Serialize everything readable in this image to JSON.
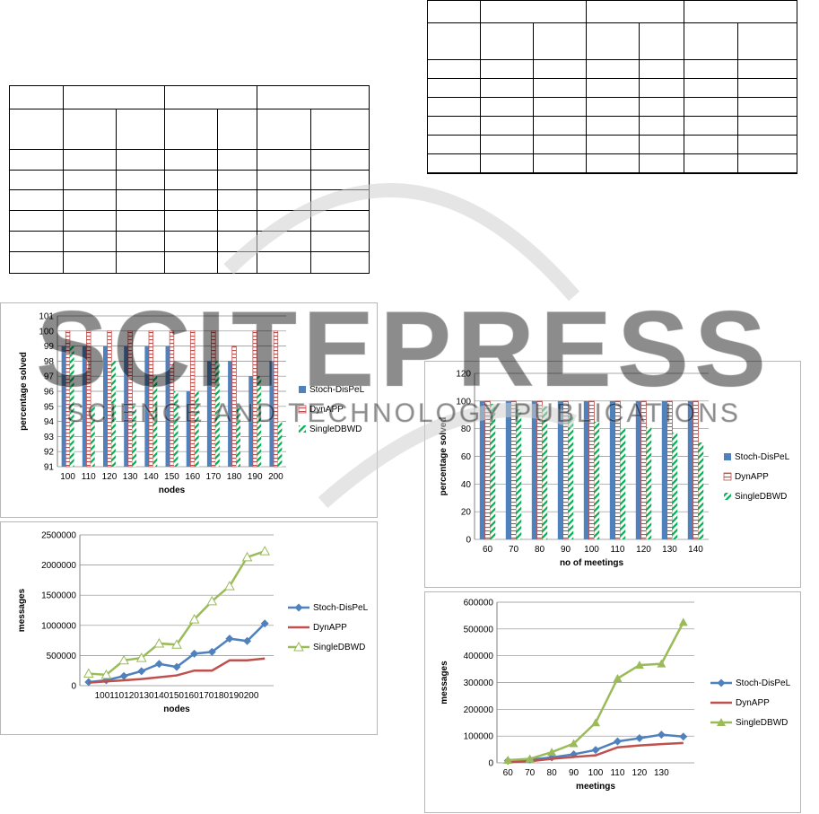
{
  "colors": {
    "stoch": "#4f81bd",
    "dynapp": "#c0504d",
    "single": "#9bbb59",
    "grid": "#8c8c8c",
    "watermark": "#cfcfcf"
  },
  "tables": [
    {
      "id": "left-table",
      "rows": 8,
      "cols": 7
    },
    {
      "id": "right-table",
      "rows": 8,
      "cols": 7
    }
  ],
  "chart_data": [
    {
      "id": "c1",
      "type": "bar",
      "xlabel": "nodes",
      "ylabel": "percentage solved",
      "categories": [
        "100",
        "110",
        "120",
        "130",
        "140",
        "150",
        "160",
        "170",
        "180",
        "190",
        "200"
      ],
      "ylim": [
        91,
        101
      ],
      "yticks": [
        91,
        92,
        93,
        94,
        95,
        96,
        97,
        98,
        99,
        100,
        101
      ],
      "grid": true,
      "legend": "right",
      "series": [
        {
          "name": "Stoch-DisPeL",
          "pattern": "solid",
          "values": [
            99,
            99,
            99,
            99,
            99,
            99,
            96,
            98,
            98,
            97,
            98
          ]
        },
        {
          "name": "DynAPP",
          "pattern": "brick",
          "values": [
            100,
            100,
            100,
            100,
            100,
            100,
            100,
            100,
            99,
            100,
            100
          ]
        },
        {
          "name": "SingleDBWD",
          "pattern": "diag",
          "values": [
            99,
            95,
            98,
            95,
            97,
            96,
            96,
            98,
            95,
            97,
            94
          ]
        }
      ]
    },
    {
      "id": "c2",
      "type": "line",
      "xlabel": "nodes",
      "ylabel": "messages",
      "x": [
        "100",
        "110",
        "120",
        "130",
        "140",
        "150",
        "160",
        "170",
        "180",
        "190",
        "200"
      ],
      "xticklabels": "100110120130140150160170180190200",
      "ylim": [
        0,
        2500000
      ],
      "yticks": [
        0,
        500000,
        1000000,
        1500000,
        2000000,
        2500000
      ],
      "grid": true,
      "legend": "right",
      "series": [
        {
          "name": "Stoch-DisPeL",
          "marker": "diamond",
          "values": [
            60000,
            90000,
            160000,
            240000,
            360000,
            310000,
            530000,
            560000,
            780000,
            740000,
            1030000
          ]
        },
        {
          "name": "DynAPP",
          "marker": "none",
          "values": [
            50000,
            70000,
            90000,
            110000,
            140000,
            170000,
            250000,
            250000,
            420000,
            420000,
            450000
          ]
        },
        {
          "name": "SingleDBWD",
          "marker": "triangle-open",
          "values": [
            200000,
            180000,
            420000,
            460000,
            700000,
            680000,
            1100000,
            1400000,
            1650000,
            2130000,
            2230000
          ]
        }
      ]
    },
    {
      "id": "c3",
      "type": "bar",
      "xlabel": "no of meetings",
      "ylabel": "percentage solved",
      "categories": [
        "60",
        "70",
        "80",
        "90",
        "100",
        "110",
        "120",
        "130",
        "140"
      ],
      "ylim": [
        0,
        120
      ],
      "yticks": [
        0,
        20,
        40,
        60,
        80,
        100,
        120
      ],
      "grid": true,
      "legend": "right",
      "series": [
        {
          "name": "Stoch-DisPeL",
          "pattern": "solid",
          "values": [
            100,
            100,
            100,
            100,
            100,
            100,
            100,
            100,
            100
          ]
        },
        {
          "name": "DynAPP",
          "pattern": "brick",
          "values": [
            100,
            100,
            100,
            100,
            100,
            100,
            100,
            100,
            100
          ]
        },
        {
          "name": "SingleDBWD",
          "pattern": "diag",
          "values": [
            98,
            94,
            96,
            89,
            85,
            80,
            81,
            77,
            70
          ]
        }
      ]
    },
    {
      "id": "c4",
      "type": "line",
      "xlabel": "meetings",
      "ylabel": "messages",
      "x": [
        "60",
        "70",
        "80",
        "90",
        "100",
        "110",
        "120",
        "130",
        "140"
      ],
      "xtick_show": [
        "60",
        "70",
        "80",
        "90",
        "100",
        "110",
        "120",
        "130",
        ""
      ],
      "ylim": [
        0,
        600000
      ],
      "yticks": [
        0,
        100000,
        200000,
        300000,
        400000,
        500000,
        600000
      ],
      "grid": true,
      "legend": "right",
      "series": [
        {
          "name": "Stoch-DisPeL",
          "marker": "diamond",
          "values": [
            8000,
            12000,
            20000,
            32000,
            48000,
            80000,
            92000,
            105000,
            98000
          ]
        },
        {
          "name": "DynAPP",
          "marker": "none",
          "values": [
            3000,
            6000,
            15000,
            22000,
            28000,
            58000,
            65000,
            70000,
            74000
          ]
        },
        {
          "name": "SingleDBWD",
          "marker": "triangle",
          "values": [
            10000,
            15000,
            40000,
            72000,
            150000,
            315000,
            365000,
            370000,
            525000
          ]
        }
      ]
    }
  ]
}
